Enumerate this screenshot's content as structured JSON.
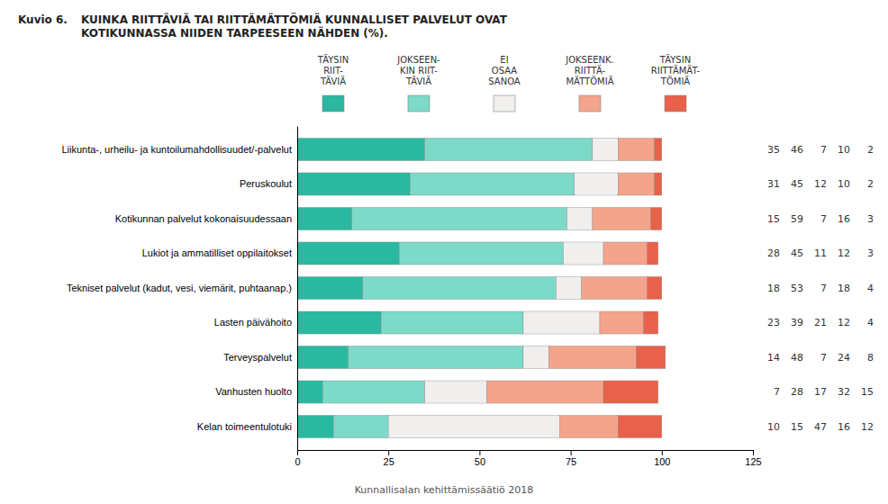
{
  "chart_data": {
    "type": "bar",
    "orientation": "horizontal",
    "stacked": true,
    "data_labels": true,
    "title": "Kuvio 6.",
    "subtitle": "KUINKA RIITTÄVIÄ TAI RIITTÄMÄTTÖMIÄ KUNNALLISET PALVELUT OVAT\nKOTIKUNNASSA NIIDEN TARPEESEEN NÄHDEN (%).",
    "annotations": [
      "Kunnallisalan kehittämissäätiö 2018"
    ],
    "categories": [
      "Liikunta-, urheilu- ja kuntoilumahdollisuudet/-palvelut",
      "Peruskoulut",
      "Kotikunnan palvelut kokonaisuudessaan",
      "Lukiot ja ammatilliset oppilaitokset",
      "Tekniset palvelut (kadut, vesi, viemärit, puhtaanap.)",
      "Lasten päivähoito",
      "Terveyspalvelut",
      "Vanhusten huolto",
      "Kelan toimeentulotuki"
    ],
    "series": [
      {
        "name": "TÄYSIN\nRIIT-\nTÄVIÄ",
        "color": "#2ab8a0",
        "values": [
          35,
          31,
          15,
          28,
          18,
          23,
          14,
          7,
          10
        ]
      },
      {
        "name": "JOKSEEN-\nKIN RIIT-\nTÄVIÄ",
        "color": "#7dd9c8",
        "values": [
          46,
          45,
          59,
          45,
          53,
          39,
          48,
          28,
          15
        ]
      },
      {
        "name": "EI\nOSAA\nSANOA",
        "color": "#f0efee",
        "values": [
          7,
          12,
          7,
          11,
          7,
          21,
          7,
          17,
          47
        ]
      },
      {
        "name": "JOKSEENK.\nRIITTÄ-\nMÄTTÖMIÄ",
        "color": "#f4a48a",
        "values": [
          10,
          10,
          16,
          12,
          18,
          12,
          24,
          32,
          16
        ]
      },
      {
        "name": "TÄYSIN\nRIITTÄMÄT-\nTÖMIÄ",
        "color": "#e8614a",
        "values": [
          2,
          2,
          3,
          3,
          4,
          4,
          8,
          15,
          12
        ]
      }
    ],
    "xlim": [
      0,
      125
    ],
    "xticks": [
      0,
      25,
      50,
      75,
      100,
      125
    ]
  }
}
